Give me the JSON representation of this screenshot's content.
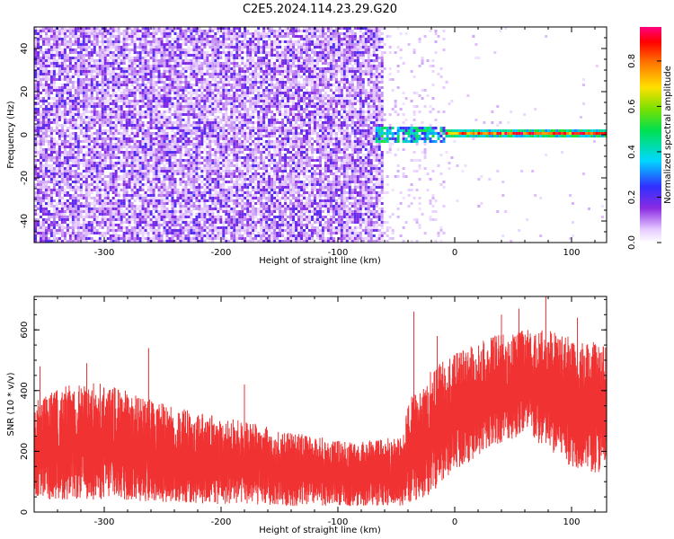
{
  "figure_title": "C2E5.2024.114.23.29.G20",
  "chart_data": [
    {
      "type": "heatmap",
      "title": "",
      "xlabel": "Height of straight line (km)",
      "ylabel": "Frequency (Hz)",
      "xlim": [
        -360,
        130
      ],
      "ylim": [
        -50,
        50
      ],
      "xticks": [
        -300,
        -200,
        -100,
        0,
        100
      ],
      "xtick_labels": [
        "-300",
        "-200",
        "-100",
        "0",
        "100"
      ],
      "yticks": [
        -40,
        -20,
        0,
        20,
        40
      ],
      "ytick_labels": [
        "-40",
        "-20",
        "0",
        "20",
        "40"
      ],
      "colorbar": {
        "label": "Normalized spectral amplitude",
        "range": [
          0,
          0.95
        ],
        "ticks": [
          0,
          0.2,
          0.4,
          0.6,
          0.8
        ],
        "tick_labels": [
          "0.0",
          "0.2",
          "0.4",
          "0.6",
          "0.8"
        ],
        "colormap": "rainbow (white-violet-blue-cyan-green-yellow-red-magenta)"
      },
      "regions": [
        {
          "x": [
            -360,
            -62
          ],
          "freq": [
            -50,
            50
          ],
          "amplitude": "0.05-0.25 broadband noise"
        },
        {
          "x": [
            -62,
            -10
          ],
          "freq": [
            -50,
            50
          ],
          "amplitude": "sparse noise below 0.1"
        },
        {
          "x": [
            -68,
            -10
          ],
          "freq": [
            -5,
            3
          ],
          "amplitude": "0.2-0.6 signal onset"
        },
        {
          "x": [
            -10,
            130
          ],
          "freq": [
            -1.5,
            1.5
          ],
          "amplitude": "0.5-0.95 narrow line at 0 Hz"
        }
      ],
      "grid": false
    },
    {
      "type": "line",
      "title": "",
      "xlabel": "Height of straight line (km)",
      "ylabel": "SNR (10 * v/v)",
      "xlim": [
        -360,
        130
      ],
      "ylim": [
        0,
        710
      ],
      "xticks": [
        -300,
        -200,
        -100,
        0,
        100
      ],
      "xtick_labels": [
        "-300",
        "-200",
        "-100",
        "0",
        "100"
      ],
      "yticks": [
        0,
        200,
        400,
        600
      ],
      "ytick_labels": [
        "0",
        "200",
        "400",
        "600"
      ],
      "color": "#f03232",
      "series": [
        {
          "x": [
            -360,
            -330,
            -300,
            -270,
            -240,
            -210,
            -180,
            -150,
            -120,
            -90,
            -60,
            -45,
            -38,
            -30,
            -20,
            -10,
            0,
            20,
            40,
            60,
            80,
            100,
            120,
            130
          ],
          "y_low": [
            40,
            40,
            40,
            35,
            30,
            25,
            25,
            20,
            20,
            20,
            20,
            20,
            30,
            40,
            60,
            100,
            140,
            180,
            230,
            250,
            200,
            150,
            130,
            120
          ],
          "y_high": [
            370,
            420,
            430,
            380,
            350,
            320,
            300,
            270,
            250,
            230,
            240,
            260,
            380,
            400,
            470,
            500,
            520,
            560,
            590,
            600,
            600,
            580,
            560,
            540
          ]
        }
      ],
      "peaks": [
        [
          -355,
          480
        ],
        [
          -315,
          490
        ],
        [
          -262,
          540
        ],
        [
          -180,
          420
        ],
        [
          -35,
          660
        ],
        [
          -15,
          580
        ],
        [
          40,
          650
        ],
        [
          55,
          670
        ],
        [
          78,
          710
        ],
        [
          105,
          640
        ]
      ],
      "grid": false
    }
  ]
}
